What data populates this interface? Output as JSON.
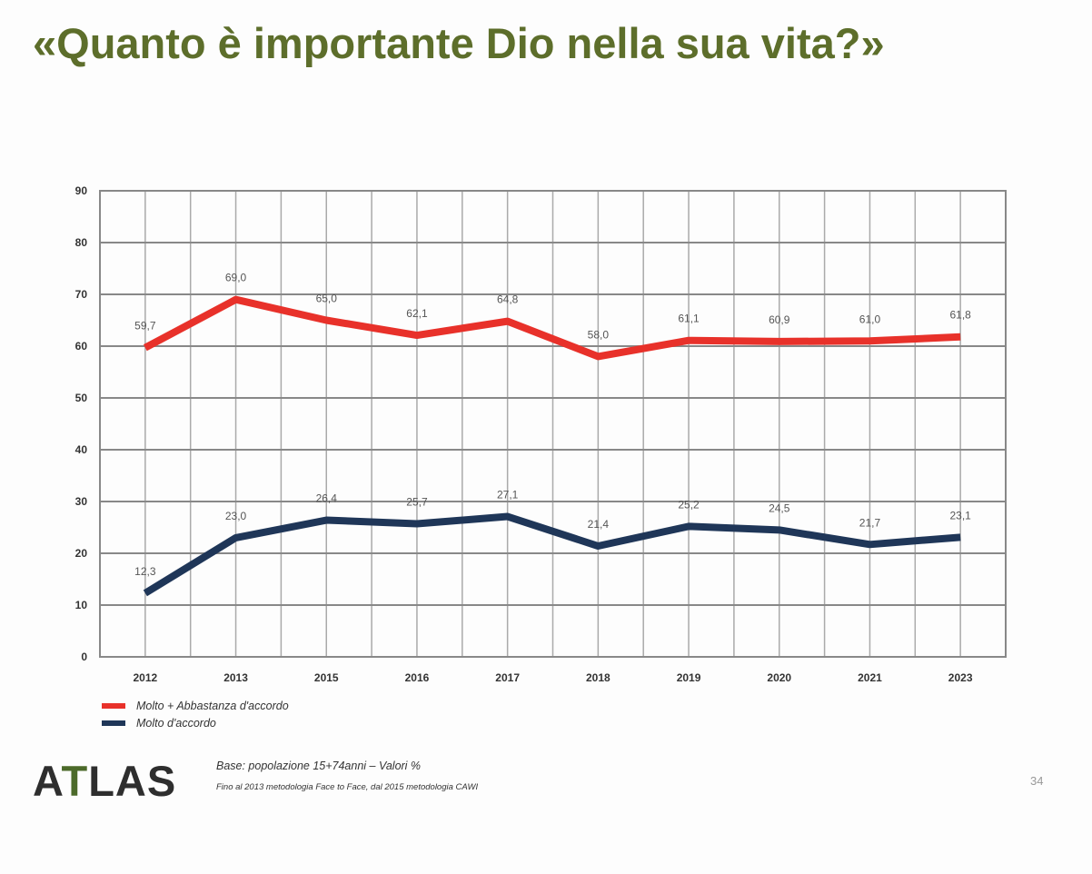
{
  "slide": {
    "title": "«Quanto è importante Dio nella sua vita?»",
    "logo": "ATLAS",
    "base_note": "Base: popolazione 15+74anni – Valori %",
    "method_note": "Fino al 2013 metodologia Face to Face, dal 2015 metodologia CAWI",
    "page_number": "34"
  },
  "chart_data": {
    "type": "line",
    "categories": [
      "2012",
      "2013",
      "2015",
      "2016",
      "2017",
      "2018",
      "2019",
      "2020",
      "2021",
      "2023"
    ],
    "ylim": [
      0,
      90
    ],
    "yticks": [
      0,
      10,
      20,
      30,
      40,
      50,
      60,
      70,
      80,
      90
    ],
    "grid": true,
    "legend_position": "bottom-left",
    "series": [
      {
        "name": "Molto + Abbastanza d'accordo",
        "color": "#e8312a",
        "values": [
          59.7,
          69.0,
          65.0,
          62.1,
          64.8,
          58.0,
          61.1,
          60.9,
          61.0,
          61.8
        ]
      },
      {
        "name": "Molto d'accordo",
        "color": "#1f3658",
        "values": [
          12.3,
          23.0,
          26.4,
          25.7,
          27.1,
          21.4,
          25.2,
          24.5,
          21.7,
          23.1
        ]
      }
    ]
  }
}
